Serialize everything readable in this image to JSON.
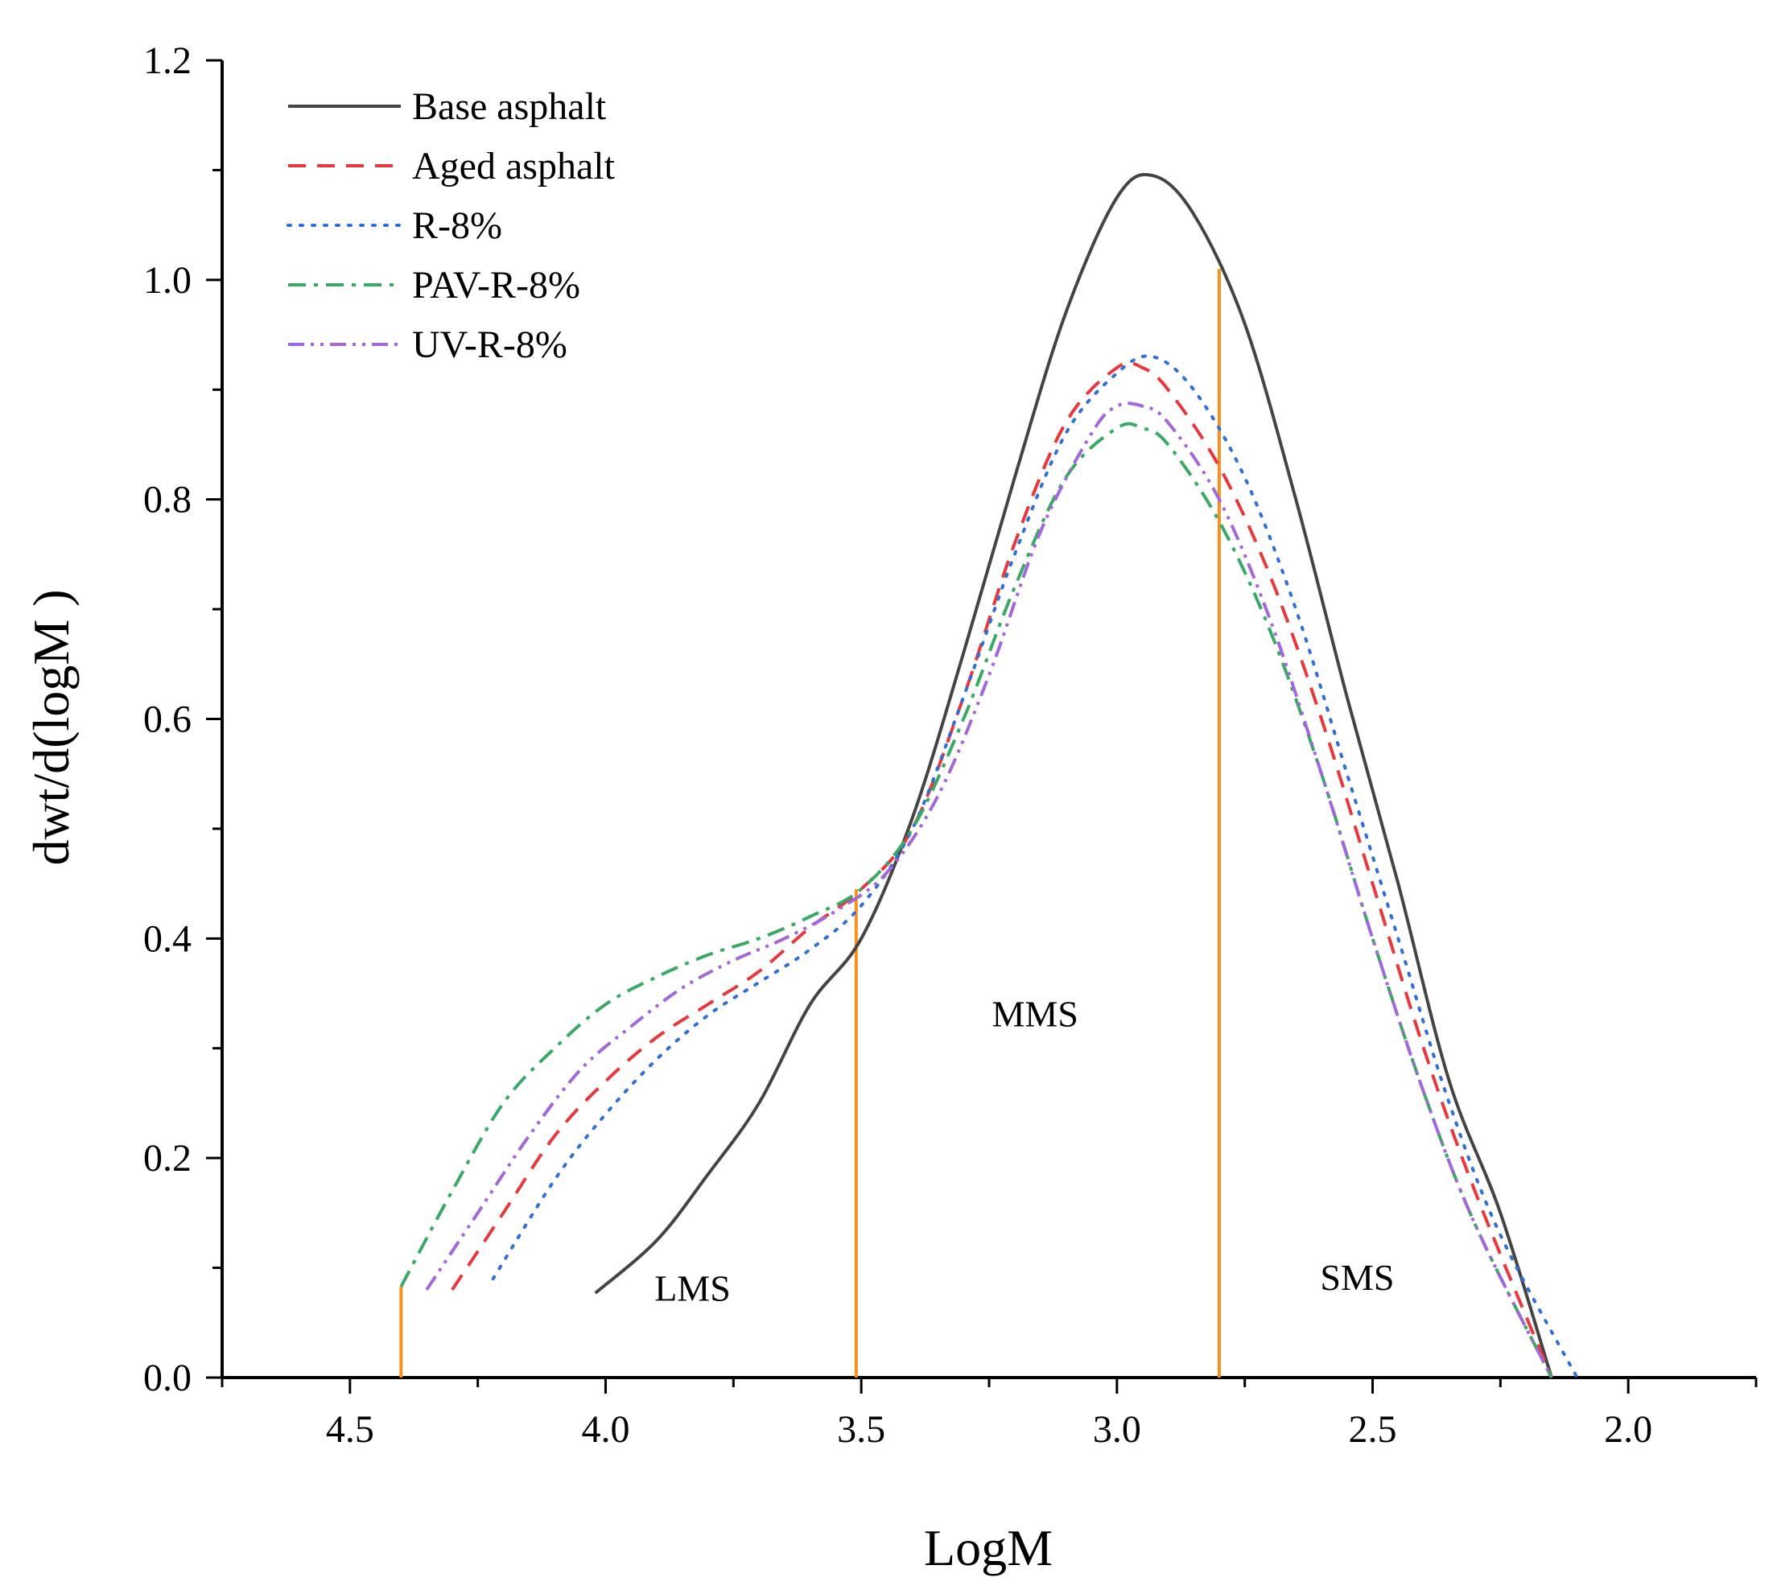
{
  "chart_data": {
    "type": "line",
    "xlabel": "LogM",
    "ylabel": "dwt/d(logM )",
    "xlim": [
      4.75,
      1.75
    ],
    "ylim": [
      0,
      1.2
    ],
    "x_reversed": true,
    "xticks": [
      4.5,
      4.0,
      3.5,
      3.0,
      2.5,
      2.0
    ],
    "xtick_labels": [
      "4.5",
      "4.0",
      "3.5",
      "3.0",
      "2.5",
      "2.0"
    ],
    "yticks": [
      0,
      0.2,
      0.4,
      0.6,
      0.8,
      1.0,
      1.2
    ],
    "ytick_labels": [
      "0.0",
      "0.2",
      "0.4",
      "0.6",
      "0.8",
      "1.0",
      "1.2"
    ],
    "legend_position": "top-left",
    "series": [
      {
        "name": "Base asphalt",
        "color": "#444444",
        "style": "solid",
        "points": [
          [
            4.02,
            0.077
          ],
          [
            3.9,
            0.125
          ],
          [
            3.8,
            0.185
          ],
          [
            3.7,
            0.25
          ],
          [
            3.6,
            0.34
          ],
          [
            3.5,
            0.4
          ],
          [
            3.4,
            0.51
          ],
          [
            3.3,
            0.66
          ],
          [
            3.2,
            0.82
          ],
          [
            3.1,
            0.97
          ],
          [
            3.0,
            1.075
          ],
          [
            2.93,
            1.095
          ],
          [
            2.85,
            1.06
          ],
          [
            2.75,
            0.96
          ],
          [
            2.65,
            0.8
          ],
          [
            2.55,
            0.62
          ],
          [
            2.45,
            0.45
          ],
          [
            2.35,
            0.27
          ],
          [
            2.25,
            0.15
          ],
          [
            2.15,
            0.0
          ]
        ]
      },
      {
        "name": "Aged asphalt",
        "color": "#e8383d",
        "style": "dashed",
        "points": [
          [
            4.3,
            0.08
          ],
          [
            4.2,
            0.15
          ],
          [
            4.1,
            0.22
          ],
          [
            4.0,
            0.27
          ],
          [
            3.9,
            0.31
          ],
          [
            3.8,
            0.34
          ],
          [
            3.7,
            0.37
          ],
          [
            3.6,
            0.41
          ],
          [
            3.5,
            0.445
          ],
          [
            3.4,
            0.5
          ],
          [
            3.3,
            0.62
          ],
          [
            3.2,
            0.76
          ],
          [
            3.1,
            0.87
          ],
          [
            3.0,
            0.92
          ],
          [
            2.95,
            0.92
          ],
          [
            2.9,
            0.9
          ],
          [
            2.8,
            0.83
          ],
          [
            2.7,
            0.73
          ],
          [
            2.6,
            0.6
          ],
          [
            2.5,
            0.45
          ],
          [
            2.4,
            0.3
          ],
          [
            2.3,
            0.17
          ],
          [
            2.15,
            0.0
          ]
        ]
      },
      {
        "name": "R-8%",
        "color": "#2f6fd6",
        "style": "dotted",
        "points": [
          [
            4.22,
            0.09
          ],
          [
            4.1,
            0.18
          ],
          [
            4.0,
            0.24
          ],
          [
            3.9,
            0.29
          ],
          [
            3.8,
            0.33
          ],
          [
            3.7,
            0.36
          ],
          [
            3.6,
            0.39
          ],
          [
            3.5,
            0.43
          ],
          [
            3.4,
            0.5
          ],
          [
            3.3,
            0.62
          ],
          [
            3.2,
            0.75
          ],
          [
            3.1,
            0.86
          ],
          [
            3.0,
            0.915
          ],
          [
            2.93,
            0.93
          ],
          [
            2.85,
            0.9
          ],
          [
            2.75,
            0.82
          ],
          [
            2.65,
            0.7
          ],
          [
            2.55,
            0.55
          ],
          [
            2.45,
            0.4
          ],
          [
            2.35,
            0.25
          ],
          [
            2.25,
            0.13
          ],
          [
            2.1,
            0.0
          ]
        ]
      },
      {
        "name": "PAV-R-8%",
        "color": "#3aa866",
        "style": "dashdot",
        "points": [
          [
            4.4,
            0.083
          ],
          [
            4.3,
            0.17
          ],
          [
            4.2,
            0.25
          ],
          [
            4.1,
            0.3
          ],
          [
            4.0,
            0.34
          ],
          [
            3.9,
            0.365
          ],
          [
            3.8,
            0.385
          ],
          [
            3.7,
            0.4
          ],
          [
            3.6,
            0.42
          ],
          [
            3.5,
            0.445
          ],
          [
            3.4,
            0.5
          ],
          [
            3.3,
            0.6
          ],
          [
            3.2,
            0.72
          ],
          [
            3.1,
            0.82
          ],
          [
            3.0,
            0.865
          ],
          [
            2.95,
            0.865
          ],
          [
            2.9,
            0.85
          ],
          [
            2.8,
            0.78
          ],
          [
            2.7,
            0.68
          ],
          [
            2.6,
            0.55
          ],
          [
            2.5,
            0.4
          ],
          [
            2.4,
            0.26
          ],
          [
            2.3,
            0.14
          ],
          [
            2.15,
            0.0
          ]
        ]
      },
      {
        "name": "UV-R-8%",
        "color": "#a368d8",
        "style": "dashdotdot",
        "points": [
          [
            4.35,
            0.08
          ],
          [
            4.25,
            0.15
          ],
          [
            4.15,
            0.22
          ],
          [
            4.05,
            0.28
          ],
          [
            3.95,
            0.32
          ],
          [
            3.85,
            0.355
          ],
          [
            3.75,
            0.38
          ],
          [
            3.65,
            0.4
          ],
          [
            3.55,
            0.425
          ],
          [
            3.45,
            0.46
          ],
          [
            3.35,
            0.53
          ],
          [
            3.25,
            0.64
          ],
          [
            3.15,
            0.77
          ],
          [
            3.05,
            0.86
          ],
          [
            3.0,
            0.885
          ],
          [
            2.95,
            0.885
          ],
          [
            2.9,
            0.87
          ],
          [
            2.8,
            0.8
          ],
          [
            2.7,
            0.69
          ],
          [
            2.6,
            0.55
          ],
          [
            2.5,
            0.4
          ],
          [
            2.4,
            0.26
          ],
          [
            2.3,
            0.14
          ],
          [
            2.15,
            0.0
          ]
        ]
      }
    ],
    "boundaries": [
      {
        "x": 4.4,
        "y_top": 0.083
      },
      {
        "x": 3.51,
        "y_top": 0.445
      },
      {
        "x": 2.8,
        "y_top": 1.01
      }
    ],
    "boundary_color": "#f7901e",
    "regions": [
      {
        "label": "LMS",
        "x": 3.83,
        "y": 0.07
      },
      {
        "label": "MMS",
        "x": 3.16,
        "y": 0.32
      },
      {
        "label": "SMS",
        "x": 2.53,
        "y": 0.08
      }
    ]
  }
}
